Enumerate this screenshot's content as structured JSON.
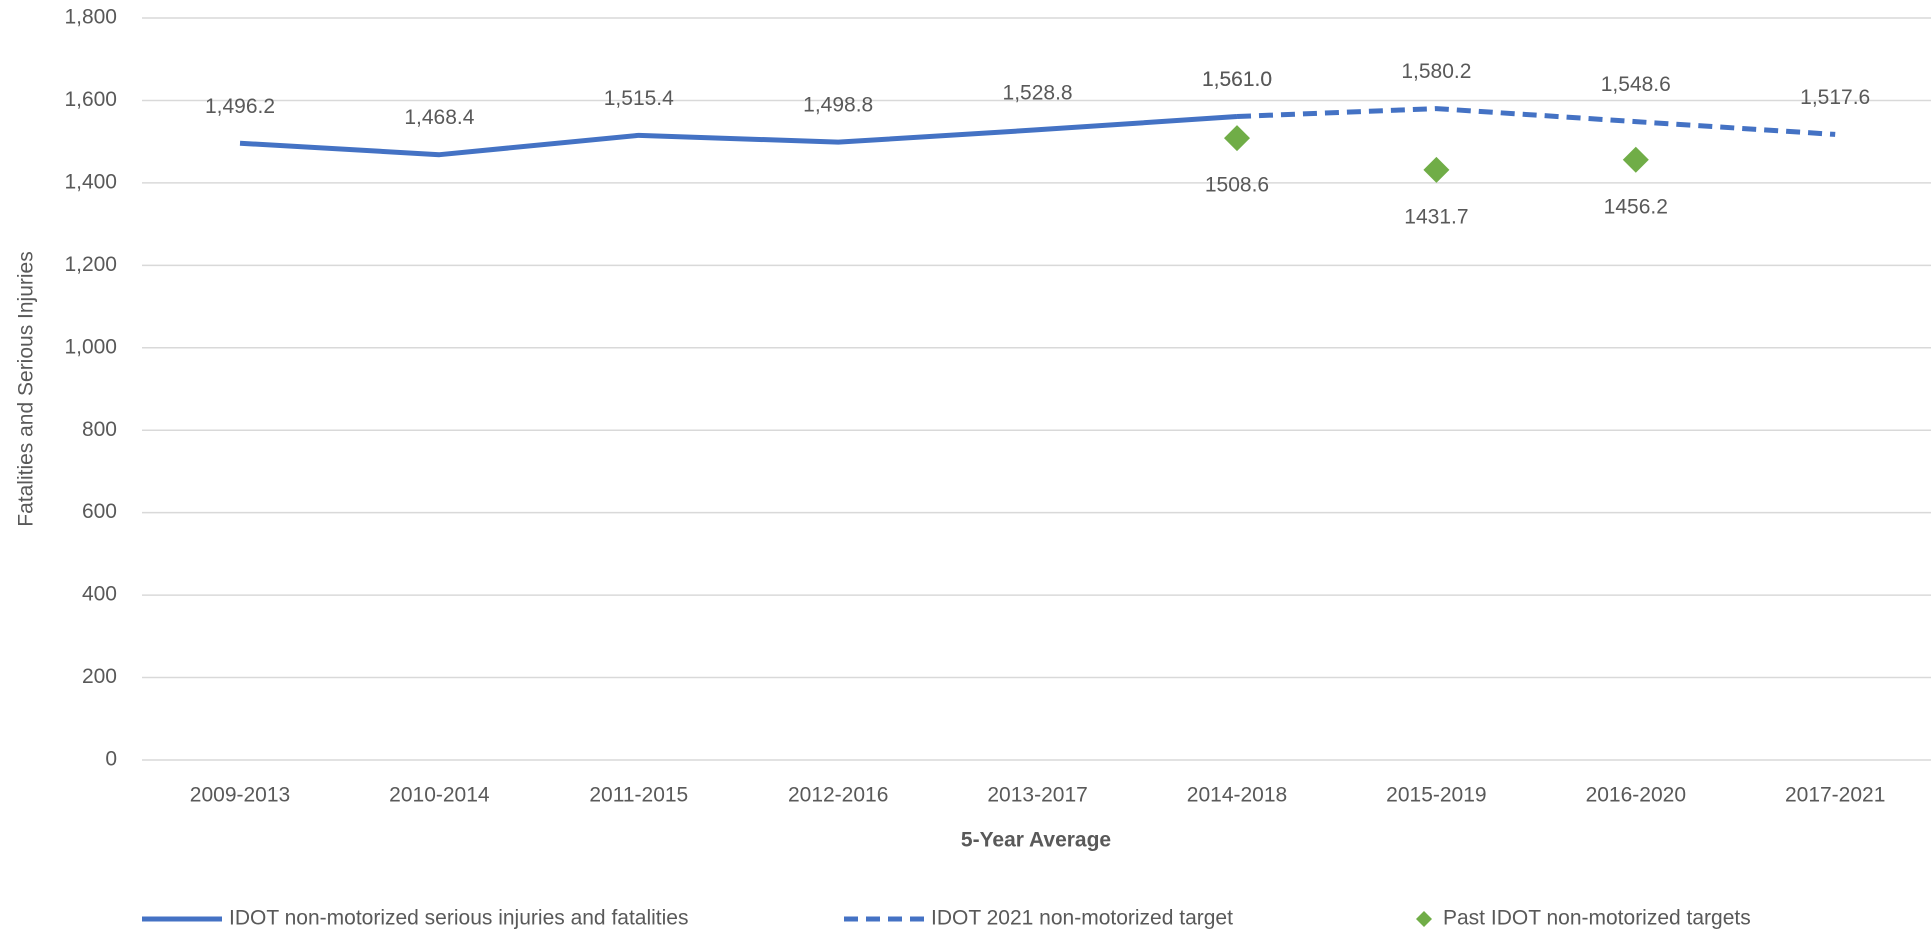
{
  "chart_data": {
    "type": "line",
    "y_label": "Fatalities and Serious Injuries",
    "x_label": "5-Year Average",
    "categories": [
      "2009-2013",
      "2010-2014",
      "2011-2015",
      "2012-2016",
      "2013-2017",
      "2014-2018",
      "2015-2019",
      "2016-2020",
      "2017-2021"
    ],
    "series": [
      {
        "name": "IDOT non-motorized serious injuries and fatalities",
        "color": "#4472c4",
        "style": "solid",
        "values": [
          1496.2,
          1468.4,
          1515.4,
          1498.8,
          1528.8,
          1561.0,
          null,
          null,
          null
        ],
        "value_labels": [
          "1,496.2",
          "1,468.4",
          "1,515.4",
          "1,498.8",
          "1,528.8",
          "1,561.0",
          null,
          null,
          null
        ]
      },
      {
        "name": "IDOT 2021 non-motorized target",
        "color": "#4472c4",
        "style": "dashed",
        "values": [
          null,
          null,
          null,
          null,
          null,
          1561.0,
          1580.2,
          1548.6,
          1517.6
        ],
        "value_labels": [
          null,
          null,
          null,
          null,
          null,
          "1,561.0",
          "1,580.2",
          "1,548.6",
          "1,517.6"
        ]
      },
      {
        "name": "Past IDOT non-motorized targets",
        "color": "#70ad47",
        "style": "markers",
        "values": [
          null,
          null,
          null,
          null,
          null,
          1508.6,
          1431.7,
          1456.2,
          null
        ]
      }
    ],
    "ylim": [
      0,
      1800
    ],
    "yticks": [
      0,
      200,
      400,
      600,
      800,
      {
        "value": 1000,
        "label": "1,000"
      },
      {
        "value": 1200,
        "label": "1,200"
      },
      {
        "value": 1400,
        "label": "1,400"
      },
      {
        "value": 1600,
        "label": "1,600"
      },
      {
        "value": 1800,
        "label": "1,800"
      }
    ],
    "grid": true,
    "legend": "bottom"
  }
}
